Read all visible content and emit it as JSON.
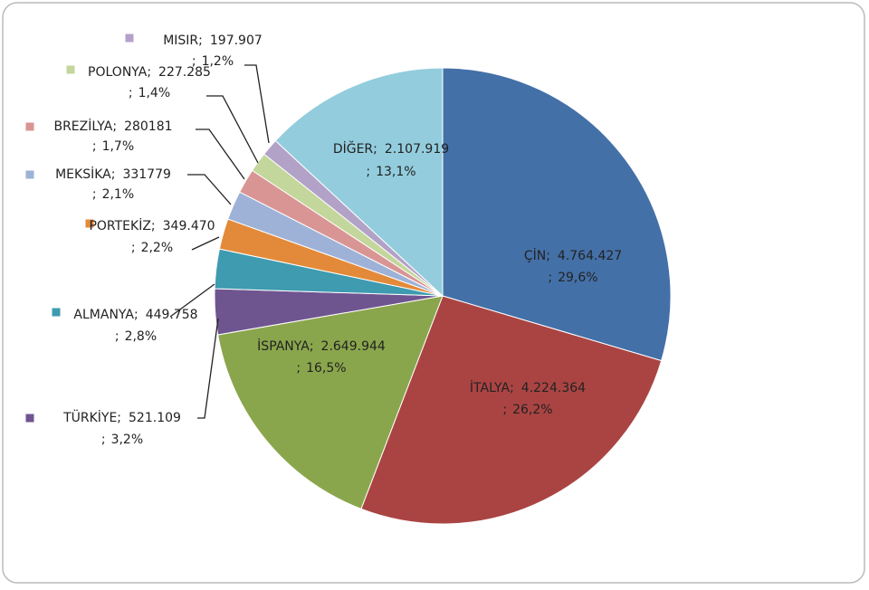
{
  "chart_data": {
    "type": "pie",
    "categories": [
      "ÇİN",
      "İTALYA",
      "İSPANYA",
      "TÜRKİYE",
      "ALMANYA",
      "PORTEKİZ",
      "MEKSİKA",
      "BREZİLYA",
      "POLONYA",
      "MISIR",
      "DİĞER"
    ],
    "values": [
      4764427,
      4224364,
      2649944,
      521109,
      449758,
      349470,
      331779,
      280181,
      227285,
      197907,
      2107919
    ],
    "value_labels": [
      "4.764.427",
      "4.224.364",
      "2.649.944",
      "521.109",
      "449.758",
      "349.470",
      "331779",
      "280181",
      "227.285",
      "197.907",
      "2.107.919"
    ],
    "percent_labels": [
      "29,6%",
      "26,2%",
      "16,5%",
      "3,2%",
      "2,8%",
      "2,2%",
      "2,1%",
      "1,7%",
      "1,4%",
      "1,2%",
      "13,1%"
    ],
    "label_separator": ";",
    "colors": [
      "#4470a8",
      "#aa4443",
      "#8aa64c",
      "#6f5590",
      "#3e9bb0",
      "#e38a3a",
      "#9eb2d8",
      "#d99594",
      "#c3d69b",
      "#b3a2c7",
      "#93cddd"
    ]
  }
}
